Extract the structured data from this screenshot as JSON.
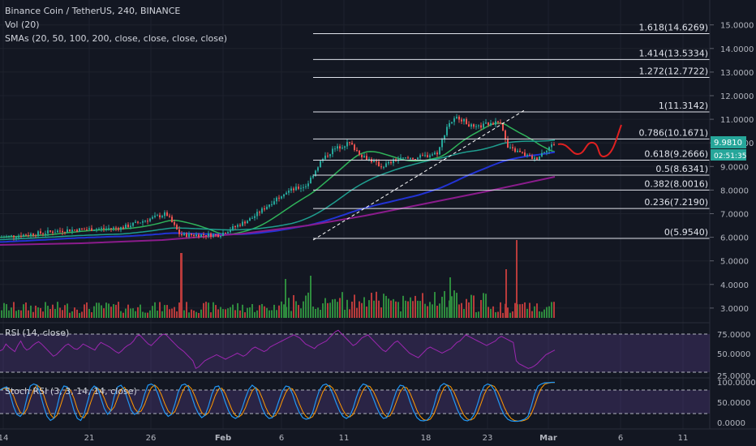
{
  "legend": {
    "title": "Binance Coin / TetherUS, 240, BINANCE",
    "vol": "Vol (20)",
    "smas": "SMAs (20, 50, 100, 200, close, close, close, close)"
  },
  "colors": {
    "background": "#131722",
    "up": "#26a69a",
    "down": "#ef5350",
    "vol_up": "#2e8b3e",
    "vol_down": "#b83b3b",
    "sma20": "#2fb35a",
    "sma50": "#1f9e8f",
    "sma100": "#2233d4",
    "sma200": "#8b1c8c",
    "rsi": "#9c27b0",
    "stoch_k": "#2196f3",
    "stoch_d": "#ff9800",
    "projection": "#e02020"
  },
  "price_axis": {
    "ticks": [
      "15.0000",
      "14.0000",
      "13.0000",
      "12.0000",
      "11.0000",
      "10.0000",
      "9.0000",
      "8.0000",
      "7.0000",
      "6.0000",
      "5.0000",
      "4.0000",
      "3.0000"
    ],
    "last_price": "9.9810",
    "countdown": "02:51:35"
  },
  "time_axis": {
    "ticks": [
      "14",
      "21",
      "26",
      "Feb",
      "6",
      "11",
      "18",
      "23",
      "Mar",
      "6",
      "11"
    ]
  },
  "fib_levels": [
    {
      "ratio": 1.618,
      "price": 14.6269,
      "label": "1.618(14.6269)"
    },
    {
      "ratio": 1.414,
      "price": 13.5334,
      "label": "1.414(13.5334)"
    },
    {
      "ratio": 1.272,
      "price": 12.7722,
      "label": "1.272(12.7722)"
    },
    {
      "ratio": 1,
      "price": 11.3142,
      "label": "1(11.3142)"
    },
    {
      "ratio": 0.786,
      "price": 10.1671,
      "label": "0.786(10.1671)"
    },
    {
      "ratio": 0.618,
      "price": 9.2666,
      "label": "0.618(9.2666)"
    },
    {
      "ratio": 0.5,
      "price": 8.6341,
      "label": "0.5(8.6341)"
    },
    {
      "ratio": 0.382,
      "price": 8.0016,
      "label": "0.382(8.0016)"
    },
    {
      "ratio": 0.236,
      "price": 7.219,
      "label": "0.236(7.2190)"
    },
    {
      "ratio": 0,
      "price": 5.954,
      "label": "0(5.9540)"
    }
  ],
  "rsi": {
    "legend": "RSI (14, close)",
    "ticks": [
      "75.0000",
      "50.0000",
      "25.0000"
    ],
    "values": [
      53,
      55,
      62,
      58,
      55,
      52,
      60,
      66,
      58,
      54,
      56,
      60,
      63,
      65,
      62,
      58,
      54,
      50,
      46,
      48,
      52,
      56,
      60,
      62,
      59,
      56,
      55,
      58,
      62,
      60,
      58,
      56,
      54,
      60,
      64,
      62,
      60,
      58,
      55,
      52,
      50,
      53,
      57,
      60,
      62,
      66,
      72,
      74,
      70,
      66,
      62,
      60,
      64,
      68,
      72,
      75,
      74,
      70,
      66,
      62,
      58,
      55,
      52,
      48,
      44,
      40,
      30,
      32,
      36,
      40,
      42,
      44,
      46,
      48,
      46,
      44,
      42,
      44,
      46,
      48,
      50,
      48,
      46,
      48,
      52,
      56,
      58,
      56,
      54,
      52,
      54,
      58,
      60,
      62,
      64,
      66,
      68,
      70,
      72,
      74,
      72,
      70,
      66,
      62,
      60,
      58,
      56,
      60,
      62,
      64,
      66,
      70,
      74,
      78,
      80,
      76,
      72,
      68,
      64,
      60,
      62,
      66,
      70,
      72,
      74,
      70,
      66,
      62,
      58,
      54,
      52,
      56,
      60,
      64,
      66,
      62,
      58,
      54,
      50,
      48,
      46,
      44,
      48,
      52,
      56,
      58,
      56,
      54,
      52,
      50,
      52,
      54,
      56,
      60,
      64,
      66,
      70,
      74,
      72,
      70,
      68,
      66,
      64,
      62,
      60,
      62,
      64,
      66,
      70,
      72,
      70,
      68,
      66,
      64,
      40,
      36,
      34,
      32,
      30,
      31,
      33,
      36,
      40,
      44,
      48,
      50,
      52,
      54
    ]
  },
  "stoch": {
    "legend": "Stoch RSI (3, 3, 14, 14, close)",
    "ticks": [
      "100.0000",
      "50.0000",
      "0.0000"
    ],
    "k": [
      80,
      85,
      88,
      70,
      40,
      20,
      15,
      25,
      60,
      90,
      95,
      92,
      70,
      40,
      15,
      5,
      10,
      40,
      75,
      90,
      88,
      60,
      30,
      10,
      5,
      20,
      50,
      80,
      90,
      85,
      60,
      35,
      20,
      30,
      65,
      88,
      92,
      80,
      55,
      30,
      20,
      25,
      40,
      70,
      92,
      95,
      90,
      70,
      45,
      25,
      15,
      20,
      45,
      75,
      92,
      95,
      88,
      65,
      40,
      22,
      12,
      18,
      40,
      70,
      88,
      90,
      75,
      50,
      28,
      15,
      10,
      15,
      35,
      60,
      82,
      92,
      85,
      60,
      35,
      18,
      10,
      12,
      30,
      55,
      78,
      90,
      88,
      70,
      45,
      25,
      12,
      8,
      10,
      25,
      55,
      80,
      92,
      95,
      88,
      70,
      48,
      28,
      15,
      10,
      15,
      35,
      62,
      85,
      95,
      92,
      80,
      60,
      38,
      20,
      10,
      12,
      28,
      55,
      80,
      92,
      90,
      75,
      50,
      28,
      12,
      5,
      4,
      6,
      15,
      40,
      70,
      90,
      96,
      92,
      78,
      55,
      32,
      15,
      6,
      4,
      8,
      20,
      45,
      72,
      90,
      95,
      92,
      80,
      58,
      35,
      18,
      8,
      4,
      3,
      3,
      5,
      8,
      15,
      40,
      70,
      90,
      95,
      98,
      98,
      99,
      99
    ]
  }
}
